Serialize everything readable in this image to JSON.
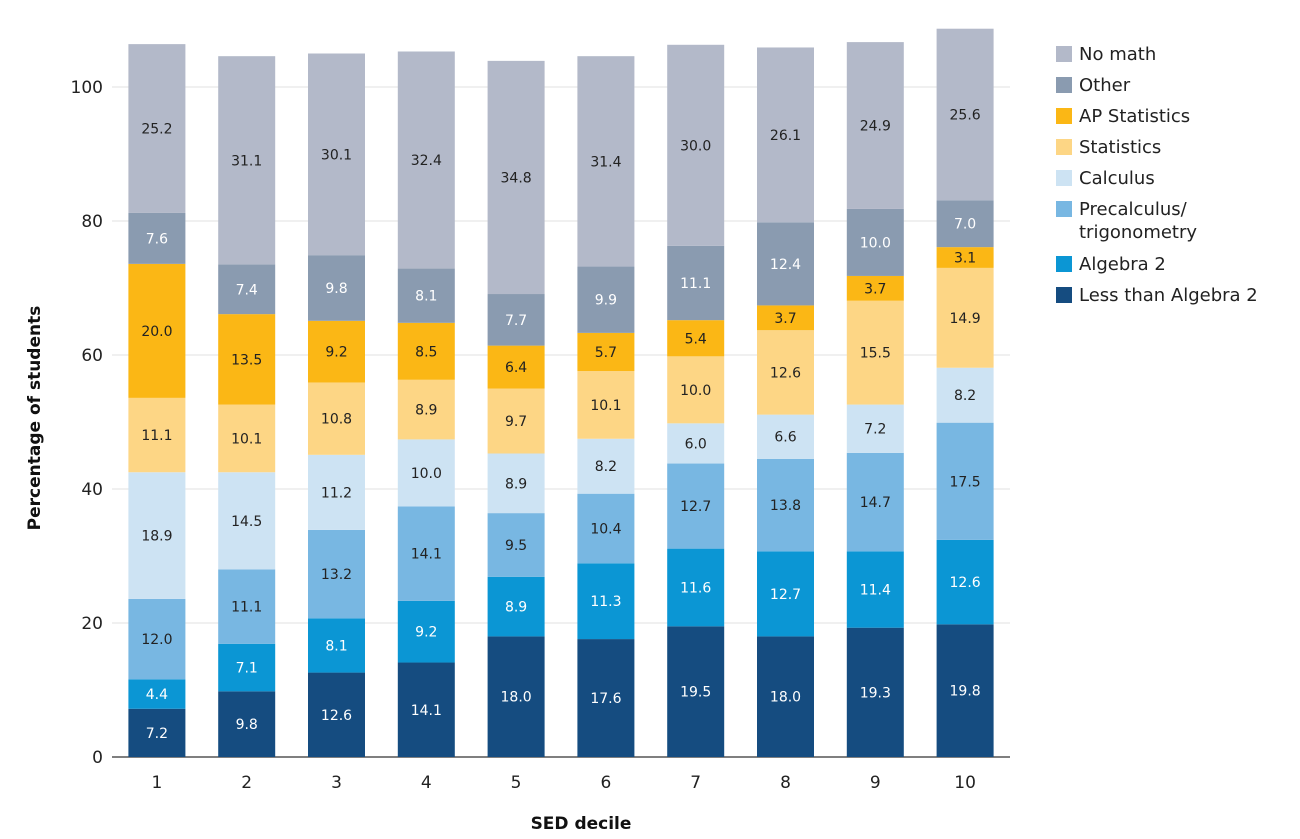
{
  "chart_data": {
    "type": "bar",
    "stacked": true,
    "xlabel": "SED decile",
    "ylabel": "Percentage of students",
    "ylim": [
      0,
      108
    ],
    "yticks": [
      0,
      20,
      40,
      60,
      80,
      100
    ],
    "grid": true,
    "legend_position": "right",
    "categories": [
      "1",
      "2",
      "3",
      "4",
      "5",
      "6",
      "7",
      "8",
      "9",
      "10"
    ],
    "series": [
      {
        "name": "Less than Algebra 2",
        "color": "#154c80",
        "label_color": "#ffffff",
        "values": [
          7.2,
          9.8,
          12.6,
          14.1,
          18.0,
          17.6,
          19.5,
          18.0,
          19.3,
          19.8
        ]
      },
      {
        "name": "Algebra 2",
        "color": "#0b96d4",
        "label_color": "#ffffff",
        "values": [
          4.4,
          7.1,
          8.1,
          9.2,
          8.9,
          11.3,
          11.6,
          12.7,
          11.4,
          12.6
        ]
      },
      {
        "name": "Precalculus/ trigonometry",
        "color": "#78b7e2",
        "label_color": "#222222",
        "values": [
          12.0,
          11.1,
          13.2,
          14.1,
          9.5,
          10.4,
          12.7,
          13.8,
          14.7,
          17.5
        ]
      },
      {
        "name": "Calculus",
        "color": "#cde3f3",
        "label_color": "#222222",
        "values": [
          18.9,
          14.5,
          11.2,
          10.0,
          8.9,
          8.2,
          6.0,
          6.6,
          7.2,
          8.2
        ]
      },
      {
        "name": "Statistics",
        "color": "#fdd685",
        "label_color": "#222222",
        "values": [
          11.1,
          10.1,
          10.8,
          8.9,
          9.7,
          10.1,
          10.0,
          12.6,
          15.5,
          14.9
        ]
      },
      {
        "name": "AP Statistics",
        "color": "#fbb715",
        "label_color": "#222222",
        "values": [
          20.0,
          13.5,
          9.2,
          8.5,
          6.4,
          5.7,
          5.4,
          3.7,
          3.7,
          3.1
        ]
      },
      {
        "name": "Other",
        "color": "#8a9bb0",
        "label_color": "#ffffff",
        "values": [
          7.6,
          7.4,
          9.8,
          8.1,
          7.7,
          9.9,
          11.1,
          12.4,
          10.0,
          7.0
        ]
      },
      {
        "name": "No math",
        "color": "#b3b9c9",
        "label_color": "#222222",
        "values": [
          25.2,
          31.1,
          30.1,
          32.4,
          34.8,
          31.4,
          30.0,
          26.1,
          24.9,
          25.6
        ]
      }
    ],
    "legend_order": [
      "No math",
      "Other",
      "AP Statistics",
      "Statistics",
      "Calculus",
      "Precalculus/ trigonometry",
      "Algebra 2",
      "Less than Algebra 2"
    ]
  }
}
